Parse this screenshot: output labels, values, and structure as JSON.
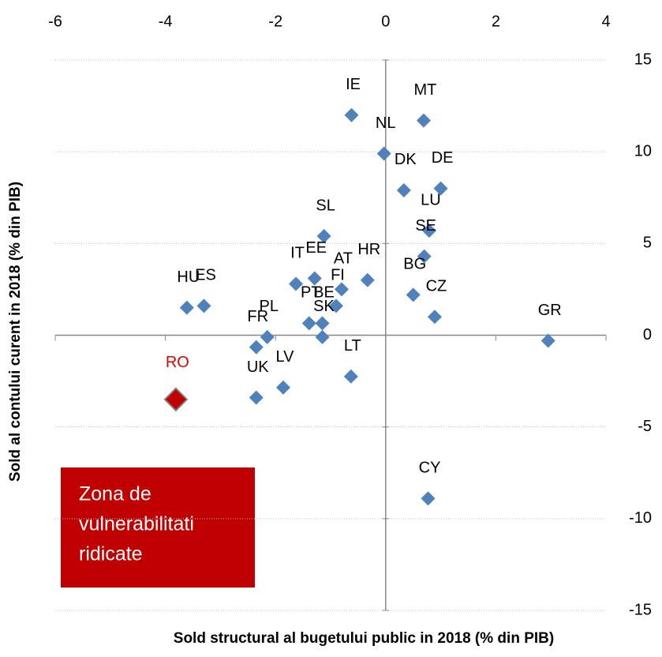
{
  "chart_data": {
    "type": "scatter",
    "x_label": "Sold structural al bugetului public in 2018 (% din PIB)",
    "y_label": "Sold al contului curent in 2018 (% din PIB)",
    "labels": [
      "IE",
      "MT",
      "NL",
      "DK",
      "DE",
      "LU",
      "SE",
      "SL",
      "IT",
      "EE",
      "AT",
      "HR",
      "FI",
      "PT",
      "BE",
      "SK",
      "PL",
      "FR",
      "BG",
      "CZ",
      "GR",
      "HU",
      "ES",
      "LV",
      "LT",
      "UK",
      "RO",
      "CY"
    ],
    "x": [
      -0.62,
      0.69,
      -0.03,
      0.33,
      1.0,
      0.79,
      0.7,
      -1.12,
      -1.63,
      -1.29,
      -0.8,
      -0.33,
      -0.9,
      -1.39,
      -1.15,
      -1.15,
      -2.15,
      -2.35,
      0.5,
      0.89,
      2.95,
      -3.61,
      -3.3,
      -1.86,
      -0.63,
      -2.35,
      -3.81,
      0.77
    ],
    "y": [
      12.0,
      11.7,
      9.9,
      7.9,
      8.0,
      5.7,
      4.3,
      5.4,
      2.8,
      3.1,
      2.5,
      3.0,
      1.6,
      0.65,
      0.65,
      -0.1,
      -0.1,
      -0.65,
      2.2,
      1.0,
      -0.3,
      1.5,
      1.6,
      -2.85,
      -2.25,
      -3.4,
      -3.5,
      -8.9
    ],
    "color": "#4f81bd",
    "point_colors": [
      "#4f81bd",
      "#4f81bd",
      "#4f81bd",
      "#4f81bd",
      "#4f81bd",
      "#4f81bd",
      "#4f81bd",
      "#4f81bd",
      "#4f81bd",
      "#4f81bd",
      "#4f81bd",
      "#4f81bd",
      "#4f81bd",
      "#4f81bd",
      "#4f81bd",
      "#4f81bd",
      "#4f81bd",
      "#4f81bd",
      "#4f81bd",
      "#4f81bd",
      "#4f81bd",
      "#4f81bd",
      "#4f81bd",
      "#4f81bd",
      "#4f81bd",
      "#4f81bd",
      "#c00000",
      "#4f81bd"
    ],
    "xlim": [
      -6,
      4
    ],
    "xticks": [
      -6,
      -4,
      -2,
      0,
      2,
      4
    ],
    "ylim": [
      -15,
      15
    ],
    "yticks": [
      15,
      10,
      5,
      0,
      -5,
      -10,
      -15
    ],
    "grid": true,
    "annotation": {
      "lines": [
        "Zona de",
        "vulnerabilitati",
        "ridicate"
      ],
      "color": "#c00000"
    }
  }
}
